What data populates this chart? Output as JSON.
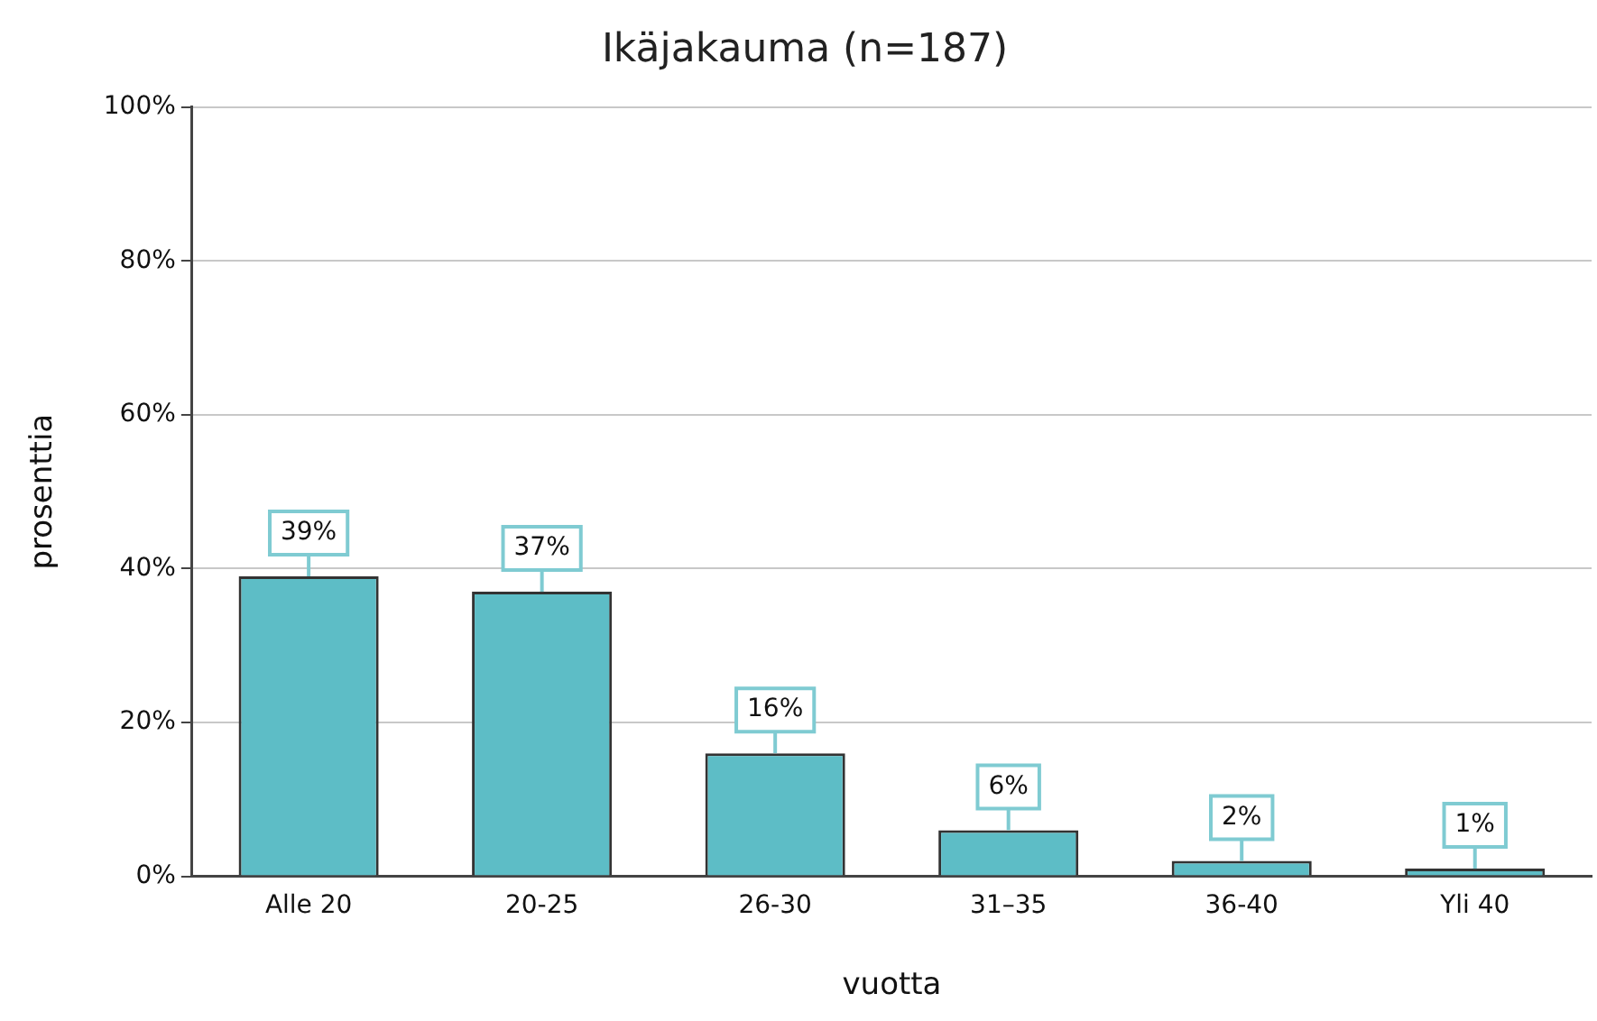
{
  "chart_data": {
    "type": "bar",
    "title": "Ikäjakauma (n=187)",
    "xlabel": "vuotta",
    "ylabel": "prosenttia",
    "categories": [
      "Alle 20",
      "20-25",
      "26-30",
      "31–35",
      "36-40",
      "Yli 40"
    ],
    "values": [
      39,
      37,
      16,
      6,
      2,
      1
    ],
    "value_labels": [
      "39%",
      "37%",
      "16%",
      "6%",
      "2%",
      "1%"
    ],
    "color": "#5dbdc6",
    "ylim": [
      0,
      100
    ],
    "yticks": [
      {
        "value": 0,
        "label": "0%"
      },
      {
        "value": 20,
        "label": "20%"
      },
      {
        "value": 40,
        "label": "40%"
      },
      {
        "value": 60,
        "label": "60%"
      },
      {
        "value": 80,
        "label": "80%"
      },
      {
        "value": 100,
        "label": "100%"
      }
    ],
    "grid": "y",
    "legend": false
  }
}
